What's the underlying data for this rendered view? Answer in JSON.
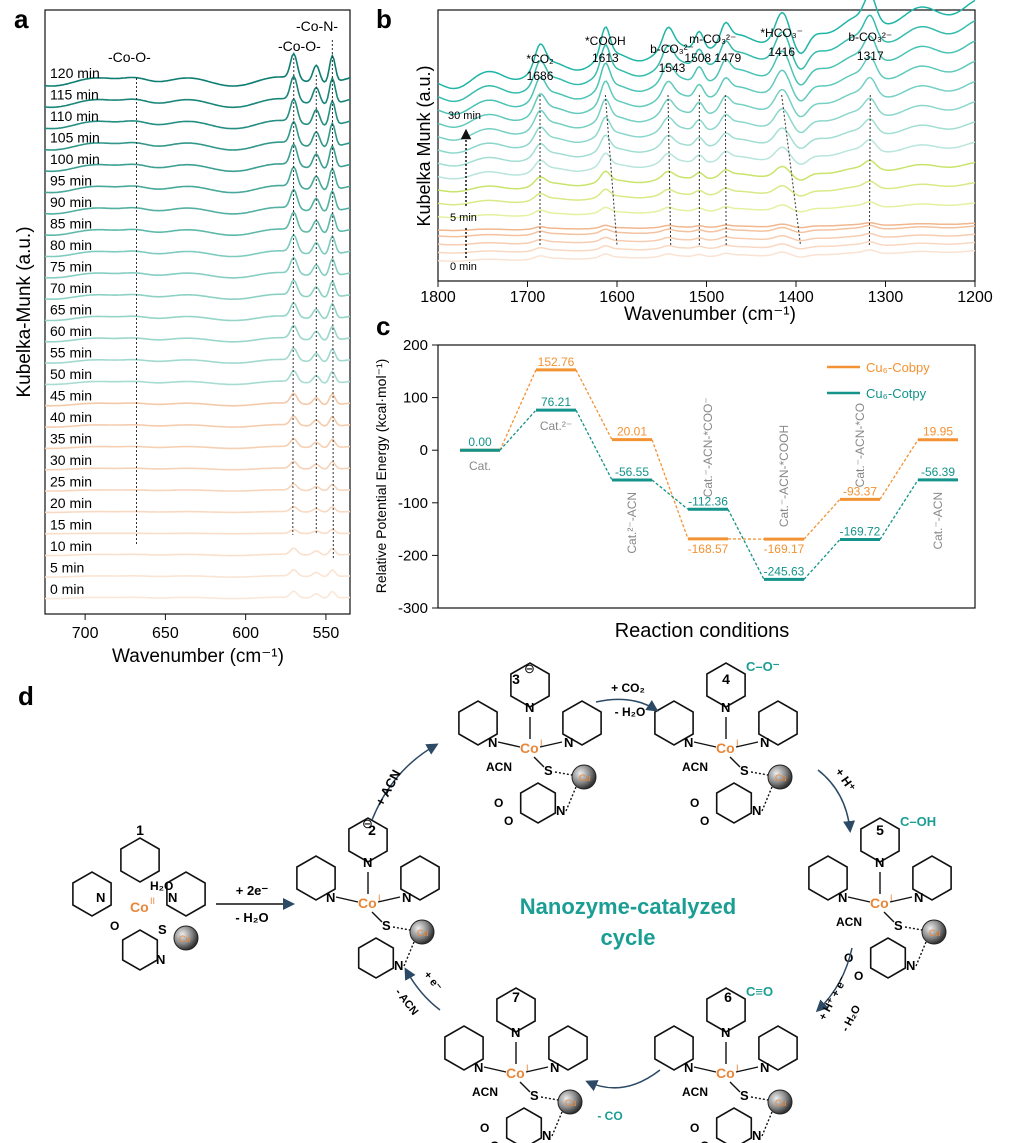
{
  "panel_letters": {
    "a": "a",
    "b": "b",
    "c": "c",
    "d": "d"
  },
  "chart_data": [
    {
      "id": "a",
      "type": "line",
      "xlabel": "Wavenumber (cm⁻¹)",
      "ylabel": "Kubelka-Munk (a.u.)",
      "xlim": [
        725,
        535
      ],
      "x_ticks": [
        700,
        650,
        600,
        550
      ],
      "series": [
        "0 min",
        "5 min",
        "10 min",
        "15 min",
        "20 min",
        "25 min",
        "30 min",
        "35 min",
        "40 min",
        "45 min",
        "50 min",
        "55 min",
        "60 min",
        "65 min",
        "70 min",
        "75 min",
        "80 min",
        "85 min",
        "90 min",
        "95 min",
        "100 min",
        "105 min",
        "110 min",
        "115 min",
        "120 min"
      ],
      "annotations": [
        {
          "text": "-Co-O-",
          "x": 668
        },
        {
          "text": "-Co-O-",
          "x": 563
        },
        {
          "text": "-Co-N-",
          "x": 548
        }
      ],
      "guide_lines_x": [
        668,
        570,
        556,
        546
      ],
      "colors": {
        "early": "#f4c9a8",
        "mid": "#a8dcd2",
        "late": "#0e7d72"
      }
    },
    {
      "id": "b",
      "type": "line",
      "xlabel": "Wavenumber (cm⁻¹)",
      "ylabel": "Kubelka Munk (a.u.)",
      "xlim": [
        1800,
        1200
      ],
      "x_ticks": [
        1800,
        1700,
        1600,
        1500,
        1400,
        1300,
        1200
      ],
      "series_labels": [
        "0 min",
        "5 min",
        "30 min"
      ],
      "annotations": [
        {
          "text": "*CO₂",
          "value": "1686",
          "x": 1686
        },
        {
          "text": "*COOH",
          "value": "1613",
          "x": 1613
        },
        {
          "text": "b-CO₃²⁻",
          "value": "1543",
          "x": 1543
        },
        {
          "text": "m-CO₃²⁻",
          "value": "1508  1479",
          "x": 1508
        },
        {
          "text": "*HCO₃⁻",
          "value": "1416",
          "x": 1416
        },
        {
          "text": "b-CO₃²⁻",
          "value": "1317",
          "x": 1317
        }
      ],
      "guide_lines_x": [
        1686,
        1613,
        1543,
        1508,
        1479,
        1416,
        1317
      ]
    },
    {
      "id": "c",
      "type": "line",
      "xlabel": "Reaction conditions",
      "ylabel": "Relative Potential Energy (kcal·mol⁻¹)",
      "ylim": [
        -300,
        200
      ],
      "y_ticks": [
        200,
        100,
        0,
        -100,
        -200,
        -300
      ],
      "categories": [
        "Cat.",
        "Cat.²⁻",
        "Cat.²⁻-ACN",
        "Cat.⁻-ACN-*COO⁻",
        "Cat.⁻-ACN-*COOH",
        "Cat.⁻-ACN-*CO",
        "Cat.⁻-ACN"
      ],
      "series": [
        {
          "name": "Cu₆-Cobpy",
          "color": "#f39232",
          "values": [
            0.0,
            152.76,
            20.01,
            -168.57,
            -169.17,
            -93.37,
            19.95
          ],
          "labels": [
            "",
            "152.76",
            "20.01",
            "-168.57",
            "-169.17",
            "-93.37",
            "19.95"
          ]
        },
        {
          "name": "Cu₆-Cotpy",
          "color": "#13938a",
          "values": [
            0.0,
            76.21,
            -56.55,
            -112.36,
            -245.63,
            -169.72,
            -56.39
          ],
          "labels": [
            "0.00",
            "76.21",
            "-56.55",
            "-112.36",
            "-245.63",
            "-169.72",
            "-56.39"
          ]
        }
      ],
      "legend_position": "top-right"
    }
  ],
  "scheme_d": {
    "center_title": [
      "Nanozyme-catalyzed",
      "cycle"
    ],
    "compounds": [
      "1",
      "2",
      "3",
      "4",
      "5",
      "6",
      "7"
    ],
    "arrows": {
      "step_1_2_top": "+ 2e⁻",
      "step_1_2_bottom": "- H₂O",
      "step_2_3": "+ ACN",
      "step_3_4_top": "+ CO₂",
      "step_3_4_bottom": "- H₂O",
      "step_4_5": "+ H⁺",
      "step_5_6": "+ H⁺ + e⁻",
      "step_5_6_b": "- H₂O",
      "step_6_7": "- CO",
      "step_7_2": "+ e⁻",
      "step_7_2_b": "- ACN"
    },
    "labels": {
      "cu": "Cu",
      "acn": "ACN",
      "n": "N",
      "s": "S",
      "o": "O",
      "co_ii": "Co",
      "co_i": "Co",
      "ox_ii": "II",
      "ox_i": "I",
      "h2o": "H₂O",
      "cooneg": "C–O⁻",
      "cooh": "C–OH",
      "co_triple": "C≡O",
      "minus": "⊖"
    },
    "colors": {
      "teal": "#1a9e93",
      "orange": "#e8873a",
      "arrow": "#2c4a66"
    }
  }
}
